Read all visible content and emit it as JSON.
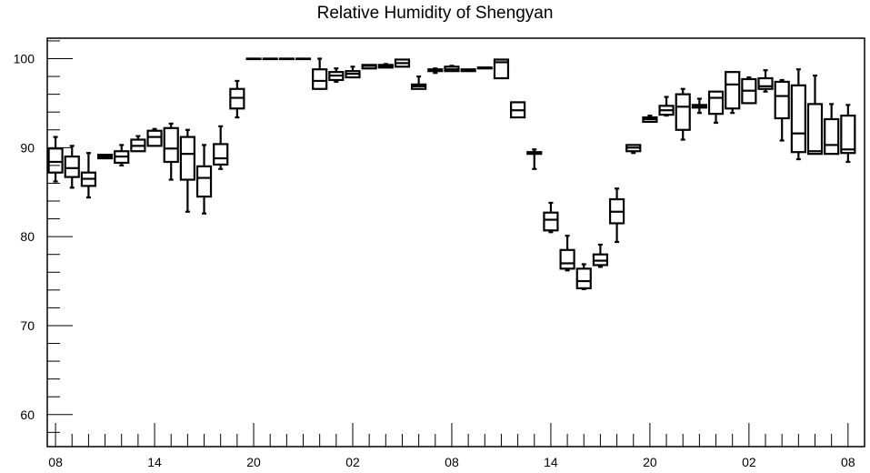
{
  "chart_data": {
    "type": "box",
    "title": "Relative Humidity of Shengyan",
    "xlabel": "",
    "ylabel": "",
    "ylim": [
      56.4,
      102.3
    ],
    "y_ticks": [
      60,
      70,
      80,
      90,
      100
    ],
    "y_tick_labels": [
      "60",
      "70",
      "80",
      "90",
      "100"
    ],
    "x_tick_labels": [
      "08",
      "14",
      "20",
      "02",
      "08",
      "14",
      "20",
      "02",
      "08"
    ],
    "x_tick_hours": [
      0,
      6,
      12,
      18,
      24,
      30,
      36,
      42,
      48
    ],
    "xlim": [
      -0.5,
      49.0
    ],
    "boxes": [
      {
        "x": 0,
        "whislo": 86.2,
        "q1": 87.2,
        "med": 88.4,
        "q3": 89.9,
        "whishi": 91.2
      },
      {
        "x": 1,
        "whislo": 85.5,
        "q1": 86.7,
        "med": 87.7,
        "q3": 89.0,
        "whishi": 90.2
      },
      {
        "x": 2,
        "whislo": 84.4,
        "q1": 85.7,
        "med": 86.5,
        "q3": 87.2,
        "whishi": 89.4
      },
      {
        "x": 3,
        "whislo": 88.8,
        "q1": 88.8,
        "med": 89.0,
        "q3": 89.2,
        "whishi": 89.2
      },
      {
        "x": 4,
        "whislo": 88.0,
        "q1": 88.3,
        "med": 89.0,
        "q3": 89.6,
        "whishi": 90.3
      },
      {
        "x": 5,
        "whislo": 89.6,
        "q1": 89.6,
        "med": 90.2,
        "q3": 90.9,
        "whishi": 91.3
      },
      {
        "x": 6,
        "whislo": 90.2,
        "q1": 90.2,
        "med": 91.2,
        "q3": 91.9,
        "whishi": 92.1
      },
      {
        "x": 7,
        "whislo": 86.4,
        "q1": 88.4,
        "med": 89.9,
        "q3": 92.2,
        "whishi": 92.7
      },
      {
        "x": 8,
        "whislo": 82.8,
        "q1": 86.4,
        "med": 89.3,
        "q3": 91.2,
        "whishi": 92.0
      },
      {
        "x": 9,
        "whislo": 82.6,
        "q1": 84.5,
        "med": 86.6,
        "q3": 87.9,
        "whishi": 90.3
      },
      {
        "x": 10,
        "whislo": 87.6,
        "q1": 88.1,
        "med": 88.8,
        "q3": 90.4,
        "whishi": 92.4
      },
      {
        "x": 11,
        "whislo": 93.4,
        "q1": 94.4,
        "med": 95.6,
        "q3": 96.6,
        "whishi": 97.5
      },
      {
        "x": 12,
        "whislo": 100.0,
        "q1": 100.0,
        "med": 100.0,
        "q3": 100.0,
        "whishi": 100.0
      },
      {
        "x": 13,
        "whislo": 100.0,
        "q1": 100.0,
        "med": 100.0,
        "q3": 100.0,
        "whishi": 100.0
      },
      {
        "x": 14,
        "whislo": 100.0,
        "q1": 100.0,
        "med": 100.0,
        "q3": 100.0,
        "whishi": 100.0
      },
      {
        "x": 15,
        "whislo": 100.0,
        "q1": 100.0,
        "med": 100.0,
        "q3": 100.0,
        "whishi": 100.0
      },
      {
        "x": 16,
        "whislo": 96.6,
        "q1": 96.6,
        "med": 97.5,
        "q3": 98.8,
        "whishi": 100.0
      },
      {
        "x": 17,
        "whislo": 97.4,
        "q1": 97.6,
        "med": 98.1,
        "q3": 98.5,
        "whishi": 98.9
      },
      {
        "x": 18,
        "whislo": 97.9,
        "q1": 97.9,
        "med": 98.3,
        "q3": 98.6,
        "whishi": 99.1
      },
      {
        "x": 19,
        "whislo": 98.9,
        "q1": 98.9,
        "med": 99.2,
        "q3": 99.3,
        "whishi": 99.3
      },
      {
        "x": 20,
        "whislo": 99.0,
        "q1": 99.0,
        "med": 99.2,
        "q3": 99.3,
        "whishi": 99.4
      },
      {
        "x": 21,
        "whislo": 99.1,
        "q1": 99.1,
        "med": 99.5,
        "q3": 99.9,
        "whishi": 99.9
      },
      {
        "x": 22,
        "whislo": 96.6,
        "q1": 96.6,
        "med": 96.9,
        "q3": 97.1,
        "whishi": 98.0
      },
      {
        "x": 23,
        "whislo": 98.4,
        "q1": 98.6,
        "med": 98.7,
        "q3": 98.8,
        "whishi": 98.9
      },
      {
        "x": 24,
        "whislo": 98.6,
        "q1": 98.6,
        "med": 98.8,
        "q3": 99.1,
        "whishi": 99.2
      },
      {
        "x": 25,
        "whislo": 98.6,
        "q1": 98.6,
        "med": 98.7,
        "q3": 98.8,
        "whishi": 98.8
      },
      {
        "x": 26,
        "whislo": 98.9,
        "q1": 98.9,
        "med": 99.0,
        "q3": 99.0,
        "whishi": 99.0
      },
      {
        "x": 27,
        "whislo": 97.8,
        "q1": 97.8,
        "med": 99.6,
        "q3": 99.9,
        "whishi": 99.9
      },
      {
        "x": 28,
        "whislo": 93.4,
        "q1": 93.4,
        "med": 94.2,
        "q3": 95.1,
        "whishi": 95.1
      },
      {
        "x": 29,
        "whislo": 87.6,
        "q1": 89.3,
        "med": 89.4,
        "q3": 89.5,
        "whishi": 89.8
      },
      {
        "x": 30,
        "whislo": 80.5,
        "q1": 80.7,
        "med": 81.9,
        "q3": 82.7,
        "whishi": 83.8
      },
      {
        "x": 31,
        "whislo": 76.2,
        "q1": 76.4,
        "med": 77.0,
        "q3": 78.5,
        "whishi": 80.1
      },
      {
        "x": 32,
        "whislo": 74.1,
        "q1": 74.2,
        "med": 75.0,
        "q3": 76.4,
        "whishi": 76.9
      },
      {
        "x": 33,
        "whislo": 76.6,
        "q1": 76.8,
        "med": 77.3,
        "q3": 78.0,
        "whishi": 79.1
      },
      {
        "x": 34,
        "whislo": 79.4,
        "q1": 81.5,
        "med": 82.8,
        "q3": 84.2,
        "whishi": 85.4
      },
      {
        "x": 35,
        "whislo": 89.4,
        "q1": 89.6,
        "med": 90.0,
        "q3": 90.3,
        "whishi": 90.3
      },
      {
        "x": 36,
        "whislo": 92.9,
        "q1": 92.9,
        "med": 93.2,
        "q3": 93.4,
        "whishi": 93.6
      },
      {
        "x": 37,
        "whislo": 93.6,
        "q1": 93.7,
        "med": 94.2,
        "q3": 94.7,
        "whishi": 95.7
      },
      {
        "x": 38,
        "whislo": 90.9,
        "q1": 92.0,
        "med": 94.6,
        "q3": 96.0,
        "whishi": 96.6
      },
      {
        "x": 39,
        "whislo": 93.9,
        "q1": 94.5,
        "med": 94.7,
        "q3": 94.8,
        "whishi": 95.5
      },
      {
        "x": 40,
        "whislo": 92.8,
        "q1": 93.8,
        "med": 95.6,
        "q3": 96.3,
        "whishi": 96.3
      },
      {
        "x": 41,
        "whislo": 93.9,
        "q1": 94.4,
        "med": 97.1,
        "q3": 98.5,
        "whishi": 98.5
      },
      {
        "x": 42,
        "whislo": 95.0,
        "q1": 95.0,
        "med": 96.4,
        "q3": 97.7,
        "whishi": 97.9
      },
      {
        "x": 43,
        "whislo": 96.3,
        "q1": 96.6,
        "med": 96.9,
        "q3": 97.8,
        "whishi": 98.7
      },
      {
        "x": 44,
        "whislo": 90.8,
        "q1": 93.3,
        "med": 95.8,
        "q3": 97.4,
        "whishi": 97.6
      },
      {
        "x": 45,
        "whislo": 88.7,
        "q1": 89.5,
        "med": 91.6,
        "q3": 97.0,
        "whishi": 98.8
      },
      {
        "x": 46,
        "whislo": 89.3,
        "q1": 89.3,
        "med": 89.6,
        "q3": 94.9,
        "whishi": 98.1
      },
      {
        "x": 47,
        "whislo": 89.3,
        "q1": 89.3,
        "med": 90.3,
        "q3": 93.2,
        "whishi": 94.9
      },
      {
        "x": 48,
        "whislo": 88.4,
        "q1": 89.4,
        "med": 89.8,
        "q3": 93.6,
        "whishi": 94.8
      }
    ]
  }
}
